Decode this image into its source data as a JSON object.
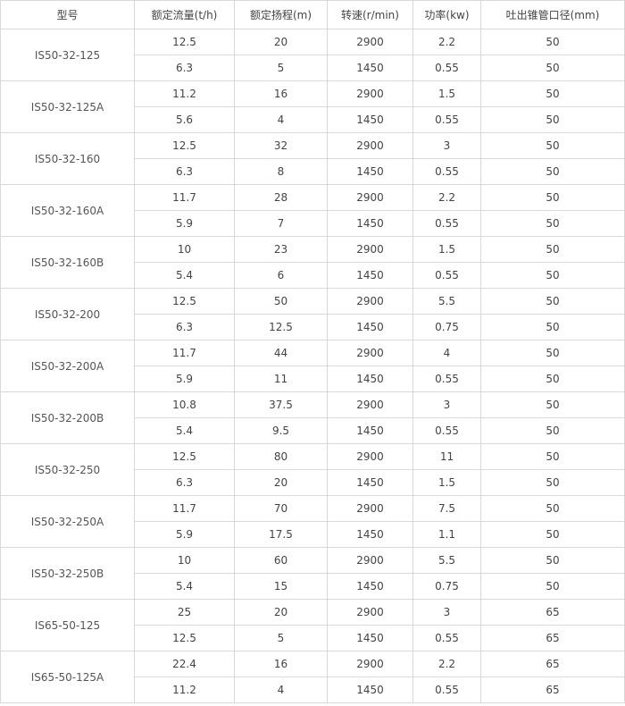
{
  "headers": [
    "型号",
    "额定流量(t/h)",
    "额定扬程(m)",
    "转速(r/min)",
    "功率(kw)",
    "吐出锥管口径(mm)"
  ],
  "models": [
    {
      "model": "IS50-32-125",
      "rows": [
        [
          "12.5",
          "20",
          "2900",
          "2.2",
          "50"
        ],
        [
          "6.3",
          "5",
          "1450",
          "0.55",
          "50"
        ]
      ]
    },
    {
      "model": "IS50-32-125A",
      "rows": [
        [
          "11.2",
          "16",
          "2900",
          "1.5",
          "50"
        ],
        [
          "5.6",
          "4",
          "1450",
          "0.55",
          "50"
        ]
      ]
    },
    {
      "model": "IS50-32-160",
      "rows": [
        [
          "12.5",
          "32",
          "2900",
          "3",
          "50"
        ],
        [
          "6.3",
          "8",
          "1450",
          "0.55",
          "50"
        ]
      ]
    },
    {
      "model": "IS50-32-160A",
      "rows": [
        [
          "11.7",
          "28",
          "2900",
          "2.2",
          "50"
        ],
        [
          "5.9",
          "7",
          "1450",
          "0.55",
          "50"
        ]
      ]
    },
    {
      "model": "IS50-32-160B",
      "rows": [
        [
          "10",
          "23",
          "2900",
          "1.5",
          "50"
        ],
        [
          "5.4",
          "6",
          "1450",
          "0.55",
          "50"
        ]
      ]
    },
    {
      "model": "IS50-32-200",
      "rows": [
        [
          "12.5",
          "50",
          "2900",
          "5.5",
          "50"
        ],
        [
          "6.3",
          "12.5",
          "1450",
          "0.75",
          "50"
        ]
      ]
    },
    {
      "model": "IS50-32-200A",
      "rows": [
        [
          "11.7",
          "44",
          "2900",
          "4",
          "50"
        ],
        [
          "5.9",
          "11",
          "1450",
          "0.55",
          "50"
        ]
      ]
    },
    {
      "model": "IS50-32-200B",
      "rows": [
        [
          "10.8",
          "37.5",
          "2900",
          "3",
          "50"
        ],
        [
          "5.4",
          "9.5",
          "1450",
          "0.55",
          "50"
        ]
      ]
    },
    {
      "model": "IS50-32-250",
      "rows": [
        [
          "12.5",
          "80",
          "2900",
          "11",
          "50"
        ],
        [
          "6.3",
          "20",
          "1450",
          "1.5",
          "50"
        ]
      ]
    },
    {
      "model": "IS50-32-250A",
      "rows": [
        [
          "11.7",
          "70",
          "2900",
          "7.5",
          "50"
        ],
        [
          "5.9",
          "17.5",
          "1450",
          "1.1",
          "50"
        ]
      ]
    },
    {
      "model": "IS50-32-250B",
      "rows": [
        [
          "10",
          "60",
          "2900",
          "5.5",
          "50"
        ],
        [
          "5.4",
          "15",
          "1450",
          "0.75",
          "50"
        ]
      ]
    },
    {
      "model": "IS65-50-125",
      "rows": [
        [
          "25",
          "20",
          "2900",
          "3",
          "65"
        ],
        [
          "12.5",
          "5",
          "1450",
          "0.55",
          "65"
        ]
      ]
    },
    {
      "model": "IS65-50-125A",
      "rows": [
        [
          "22.4",
          "16",
          "2900",
          "2.2",
          "65"
        ],
        [
          "11.2",
          "4",
          "1450",
          "0.55",
          "65"
        ]
      ]
    }
  ]
}
